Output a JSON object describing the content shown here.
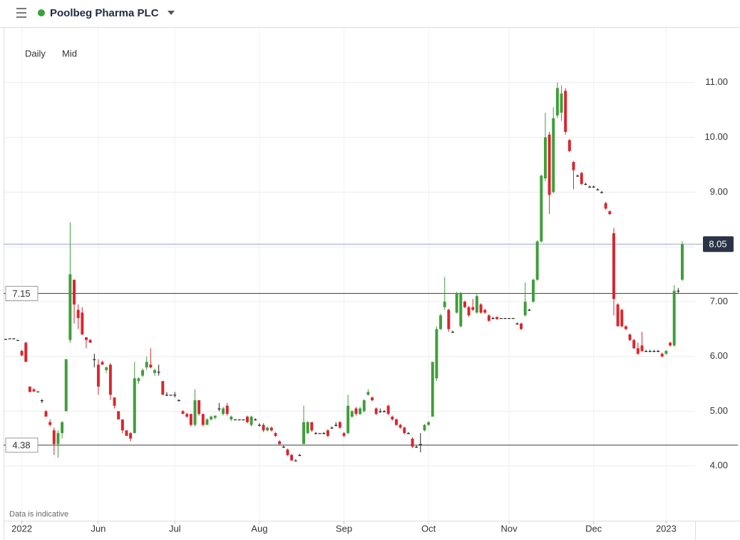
{
  "header": {
    "title": "Poolbeg Pharma PLC"
  },
  "chart_data": {
    "type": "candlestick",
    "interval": "Daily",
    "price_type": "Mid",
    "note": "Data is indicative",
    "up_color": "#3f9e3a",
    "down_color": "#d8262e",
    "flat_color": "#222222",
    "grid": true,
    "ylim": [
      3,
      12
    ],
    "yticks": [
      {
        "value": 4,
        "label": "4.00"
      },
      {
        "value": 5,
        "label": "5.00"
      },
      {
        "value": 6,
        "label": "6.00"
      },
      {
        "value": 7,
        "label": "7.00"
      },
      {
        "value": 8,
        "label": "8.00"
      },
      {
        "value": 9,
        "label": "9.00"
      },
      {
        "value": 10,
        "label": "10.00"
      },
      {
        "value": 11,
        "label": "11.00"
      }
    ],
    "levels": [
      {
        "value": 7.15,
        "color": "#3a3a3a"
      },
      {
        "value": 4.38,
        "color": "#3a3a3a"
      }
    ],
    "last_price": {
      "value": 8.05,
      "color": "#2b3446",
      "line_color": "#9aa3c7"
    },
    "categories": [
      null,
      null,
      null,
      null,
      "2022",
      null,
      null,
      null,
      null,
      null,
      null,
      null,
      null,
      null,
      null,
      null,
      null,
      null,
      null,
      null,
      null,
      null,
      null,
      "Jun",
      null,
      null,
      null,
      null,
      null,
      null,
      null,
      null,
      null,
      null,
      null,
      null,
      null,
      null,
      null,
      null,
      null,
      null,
      "Jul",
      null,
      null,
      null,
      null,
      null,
      null,
      null,
      null,
      null,
      null,
      null,
      null,
      null,
      null,
      null,
      null,
      null,
      null,
      null,
      null,
      "Aug",
      null,
      null,
      null,
      null,
      null,
      null,
      null,
      null,
      null,
      null,
      null,
      null,
      null,
      null,
      null,
      null,
      null,
      null,
      null,
      null,
      "Sep",
      null,
      null,
      null,
      null,
      null,
      null,
      null,
      null,
      null,
      null,
      null,
      null,
      null,
      null,
      null,
      null,
      null,
      null,
      null,
      null,
      "Oct",
      null,
      null,
      null,
      null,
      null,
      null,
      null,
      null,
      null,
      null,
      null,
      null,
      null,
      null,
      null,
      null,
      null,
      null,
      null,
      "Nov",
      null,
      null,
      null,
      null,
      null,
      null,
      null,
      null,
      null,
      null,
      null,
      null,
      null,
      null,
      null,
      null,
      null,
      null,
      null,
      null,
      "Dec",
      null,
      null,
      null,
      null,
      null,
      null,
      null,
      null,
      null,
      null,
      null,
      null,
      null,
      null,
      null,
      null,
      null,
      "2023",
      null,
      null,
      null,
      null
    ],
    "open": [
      6.32,
      6.33,
      6.33,
      6.3,
      6.1,
      6.25,
      5.45,
      5.4,
      5.36,
      5.2,
      5.0,
      4.8,
      4.65,
      4.4,
      4.6,
      5.0,
      6.3,
      7.4,
      6.85,
      6.8,
      6.35,
      6.3,
      5.95,
      5.85,
      5.9,
      5.75,
      5.85,
      5.25,
      5.0,
      4.85,
      4.65,
      4.6,
      4.6,
      5.55,
      5.65,
      5.8,
      5.85,
      5.7,
      5.72,
      5.55,
      5.3,
      5.3,
      5.3,
      5.2,
      5.0,
      4.95,
      4.95,
      4.75,
      5.2,
      4.95,
      4.75,
      4.85,
      4.88,
      5.05,
      4.95,
      5.1,
      4.85,
      4.85,
      4.85,
      4.85,
      4.9,
      4.75,
      4.85,
      4.75,
      4.75,
      4.65,
      4.7,
      4.6,
      4.45,
      4.35,
      4.3,
      4.2,
      4.1,
      4.2,
      4.4,
      4.6,
      4.8,
      4.6,
      4.6,
      4.6,
      4.65,
      4.7,
      4.75,
      4.8,
      4.6,
      4.6,
      4.9,
      5.05,
      4.95,
      5.0,
      5.3,
      5.25,
      5.05,
      5.0,
      5.0,
      5.1,
      4.9,
      4.85,
      4.75,
      4.7,
      4.6,
      4.5,
      4.35,
      4.4,
      4.65,
      4.75,
      4.9,
      5.6,
      6.5,
      6.9,
      6.85,
      6.45,
      6.8,
      6.55,
      7.0,
      6.9,
      6.9,
      6.8,
      6.95,
      6.85,
      6.75,
      6.7,
      6.72,
      6.7,
      6.7,
      6.7,
      6.7,
      6.6,
      6.6,
      6.75,
      6.85,
      7.0,
      7.4,
      8.1,
      9.25,
      10.05,
      9.0,
      10.4,
      10.45,
      10.85,
      9.95,
      9.55,
      9.3,
      9.35,
      9.15,
      9.1,
      9.1,
      9.05,
      9.0,
      8.8,
      8.65,
      8.25,
      6.95,
      6.85,
      6.55,
      6.4,
      6.3,
      6.15,
      6.2,
      6.1,
      6.1,
      6.1,
      6.1,
      6.05,
      6.05,
      6.25,
      6.2,
      7.2,
      7.4
    ],
    "high": [
      6.32,
      6.33,
      6.33,
      6.3,
      6.12,
      6.27,
      5.45,
      5.42,
      5.36,
      5.22,
      5.02,
      4.85,
      4.7,
      4.65,
      4.82,
      5.95,
      8.45,
      7.4,
      6.95,
      6.9,
      6.35,
      6.32,
      6.05,
      5.95,
      5.92,
      5.82,
      5.88,
      5.25,
      5.0,
      4.85,
      4.65,
      4.62,
      5.9,
      5.62,
      5.78,
      6.0,
      6.15,
      5.78,
      5.85,
      5.55,
      5.35,
      5.3,
      5.35,
      5.22,
      5.02,
      4.97,
      4.95,
      5.4,
      5.2,
      4.95,
      4.87,
      4.92,
      4.92,
      5.15,
      5.08,
      5.15,
      4.92,
      4.85,
      4.85,
      4.85,
      4.92,
      4.92,
      4.87,
      4.78,
      4.78,
      4.72,
      4.72,
      4.62,
      4.47,
      4.37,
      4.32,
      4.22,
      4.12,
      4.22,
      5.1,
      4.82,
      4.8,
      4.62,
      4.6,
      4.62,
      4.67,
      4.72,
      4.8,
      4.82,
      4.62,
      5.3,
      5.02,
      5.08,
      5.08,
      5.22,
      5.4,
      5.27,
      5.07,
      5.05,
      5.02,
      5.12,
      4.92,
      4.87,
      4.77,
      4.72,
      4.62,
      4.52,
      4.37,
      4.6,
      4.77,
      4.82,
      5.9,
      6.55,
      6.78,
      7.45,
      6.87,
      6.47,
      7.18,
      7.18,
      7.02,
      6.92,
      7.05,
      7.15,
      6.97,
      6.87,
      6.77,
      6.72,
      6.73,
      6.7,
      6.7,
      6.7,
      6.7,
      6.62,
      6.62,
      7.35,
      6.87,
      7.42,
      8.12,
      9.32,
      10.45,
      10.1,
      10.55,
      11.0,
      10.95,
      10.9,
      9.97,
      9.57,
      9.32,
      9.37,
      9.17,
      9.12,
      9.12,
      9.07,
      9.02,
      8.82,
      8.67,
      8.35,
      6.97,
      6.87,
      6.57,
      6.42,
      6.32,
      6.25,
      6.45,
      6.12,
      6.12,
      6.12,
      6.12,
      6.07,
      6.12,
      6.27,
      7.3,
      7.25,
      8.1
    ],
    "low": [
      6.32,
      6.33,
      6.33,
      6.3,
      6.0,
      5.9,
      5.35,
      5.35,
      5.36,
      5.15,
      4.9,
      4.72,
      4.2,
      4.15,
      4.5,
      5.0,
      6.25,
      6.6,
      6.5,
      6.4,
      6.15,
      6.25,
      5.8,
      5.3,
      5.85,
      5.7,
      5.2,
      5.05,
      4.85,
      4.6,
      4.55,
      4.45,
      4.6,
      5.5,
      5.62,
      5.75,
      5.78,
      5.65,
      5.65,
      5.3,
      5.28,
      5.3,
      5.25,
      5.18,
      4.95,
      4.88,
      4.72,
      4.72,
      4.92,
      4.72,
      4.75,
      4.83,
      4.85,
      5.0,
      4.92,
      4.92,
      4.82,
      4.85,
      4.85,
      4.85,
      4.78,
      4.72,
      4.83,
      4.72,
      4.62,
      4.63,
      4.63,
      4.53,
      4.38,
      4.33,
      4.18,
      4.1,
      4.1,
      4.18,
      4.4,
      4.58,
      4.62,
      4.58,
      4.6,
      4.58,
      4.52,
      4.68,
      4.72,
      4.68,
      4.52,
      4.58,
      4.88,
      4.92,
      4.93,
      4.98,
      5.28,
      5.18,
      4.93,
      4.97,
      4.98,
      4.93,
      4.83,
      4.73,
      4.68,
      4.58,
      4.58,
      4.33,
      4.33,
      4.25,
      4.63,
      4.73,
      4.9,
      5.55,
      6.48,
      6.85,
      6.45,
      6.43,
      6.78,
      6.53,
      6.88,
      6.72,
      6.83,
      6.78,
      6.78,
      6.78,
      6.63,
      6.68,
      6.67,
      6.7,
      6.7,
      6.7,
      6.7,
      6.58,
      6.48,
      6.73,
      6.83,
      6.98,
      7.38,
      8.08,
      9.2,
      8.6,
      8.98,
      10.35,
      10.3,
      10.05,
      9.73,
      9.05,
      9.28,
      9.13,
      9.13,
      9.08,
      9.08,
      9.03,
      8.98,
      8.68,
      8.58,
      6.75,
      6.55,
      6.53,
      6.48,
      6.28,
      6.13,
      6.03,
      6.08,
      6.08,
      6.08,
      6.08,
      6.08,
      5.98,
      6.03,
      6.18,
      6.18,
      7.15,
      7.38
    ],
    "close": [
      6.32,
      6.33,
      6.33,
      6.3,
      6.02,
      5.9,
      5.35,
      5.36,
      5.36,
      5.2,
      4.9,
      4.75,
      4.4,
      4.6,
      4.8,
      5.95,
      7.5,
      6.95,
      6.7,
      6.4,
      6.3,
      6.25,
      5.95,
      5.45,
      5.85,
      5.8,
      5.3,
      5.1,
      4.85,
      4.65,
      4.55,
      4.5,
      5.6,
      5.6,
      5.75,
      5.9,
      5.8,
      5.75,
      5.72,
      5.3,
      5.3,
      5.3,
      5.3,
      5.2,
      4.95,
      4.9,
      4.75,
      5.2,
      4.95,
      4.75,
      4.85,
      4.9,
      4.92,
      5.05,
      5.05,
      4.95,
      4.9,
      4.85,
      4.85,
      4.85,
      4.8,
      4.9,
      4.85,
      4.75,
      4.65,
      4.7,
      4.65,
      4.55,
      4.4,
      4.35,
      4.2,
      4.1,
      4.1,
      4.2,
      4.8,
      4.8,
      4.65,
      4.6,
      4.6,
      4.6,
      4.55,
      4.7,
      4.75,
      4.7,
      4.55,
      5.1,
      5.0,
      4.95,
      5.05,
      5.2,
      5.35,
      5.2,
      4.95,
      5.0,
      5.0,
      4.95,
      4.85,
      4.75,
      4.7,
      4.6,
      4.6,
      4.35,
      4.35,
      4.4,
      4.75,
      4.8,
      5.9,
      6.5,
      6.75,
      7.0,
      6.5,
      6.45,
      7.15,
      7.15,
      6.9,
      6.75,
      6.85,
      7.1,
      6.8,
      6.8,
      6.65,
      6.7,
      6.68,
      6.7,
      6.7,
      6.7,
      6.7,
      6.6,
      6.5,
      7.0,
      6.85,
      7.4,
      8.1,
      9.3,
      10.0,
      8.95,
      10.35,
      10.9,
      10.8,
      10.1,
      9.75,
      9.4,
      9.3,
      9.15,
      9.15,
      9.1,
      9.1,
      9.05,
      9.0,
      8.7,
      8.6,
      7.05,
      6.55,
      6.55,
      6.5,
      6.3,
      6.15,
      6.05,
      6.1,
      6.1,
      6.1,
      6.1,
      6.1,
      6.0,
      6.1,
      6.2,
      7.2,
      7.2,
      8.05
    ]
  }
}
